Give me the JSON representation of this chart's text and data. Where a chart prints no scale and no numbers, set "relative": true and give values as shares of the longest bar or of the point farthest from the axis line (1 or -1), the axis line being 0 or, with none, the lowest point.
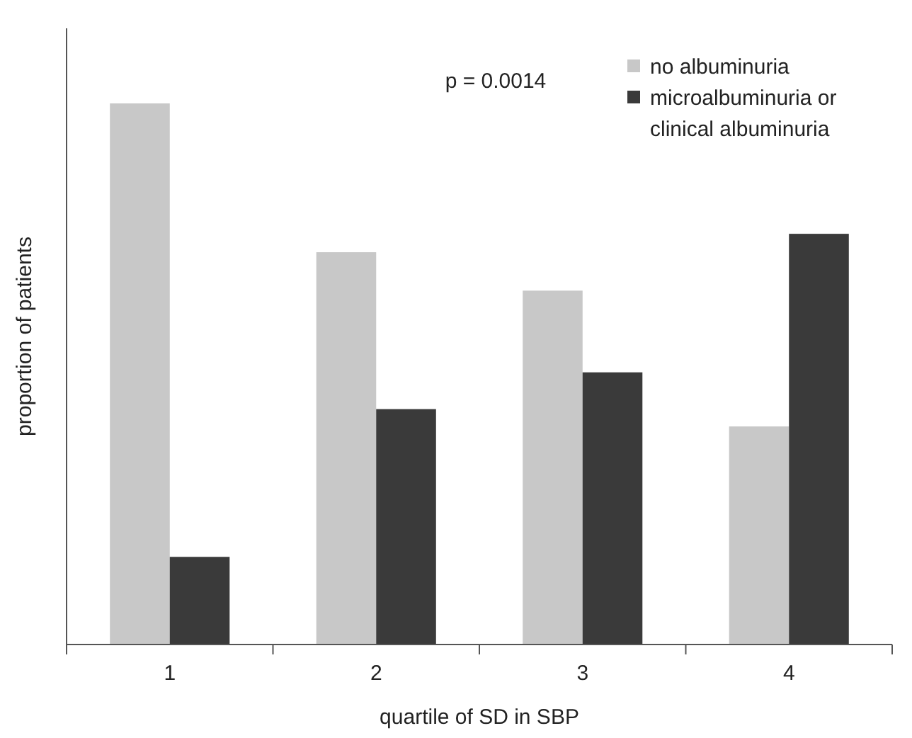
{
  "chart_data": {
    "type": "bar",
    "relative": true,
    "xlabel": "quartile of SD in SBP",
    "ylabel": "proportion of patients",
    "categories": [
      "1",
      "2",
      "3",
      "4"
    ],
    "series": [
      {
        "name": "no albuminuria",
        "color": "#c8c8c8",
        "values": [
          1,
          0.725,
          0.654,
          0.403
        ]
      },
      {
        "name": "microalbuminuria or clinical albuminuria",
        "color": "#3a3a3a",
        "values": [
          0.162,
          0.435,
          0.503,
          0.759
        ]
      }
    ],
    "annotations": [
      "p = 0.0014"
    ],
    "legend": "top right",
    "grid": false
  }
}
